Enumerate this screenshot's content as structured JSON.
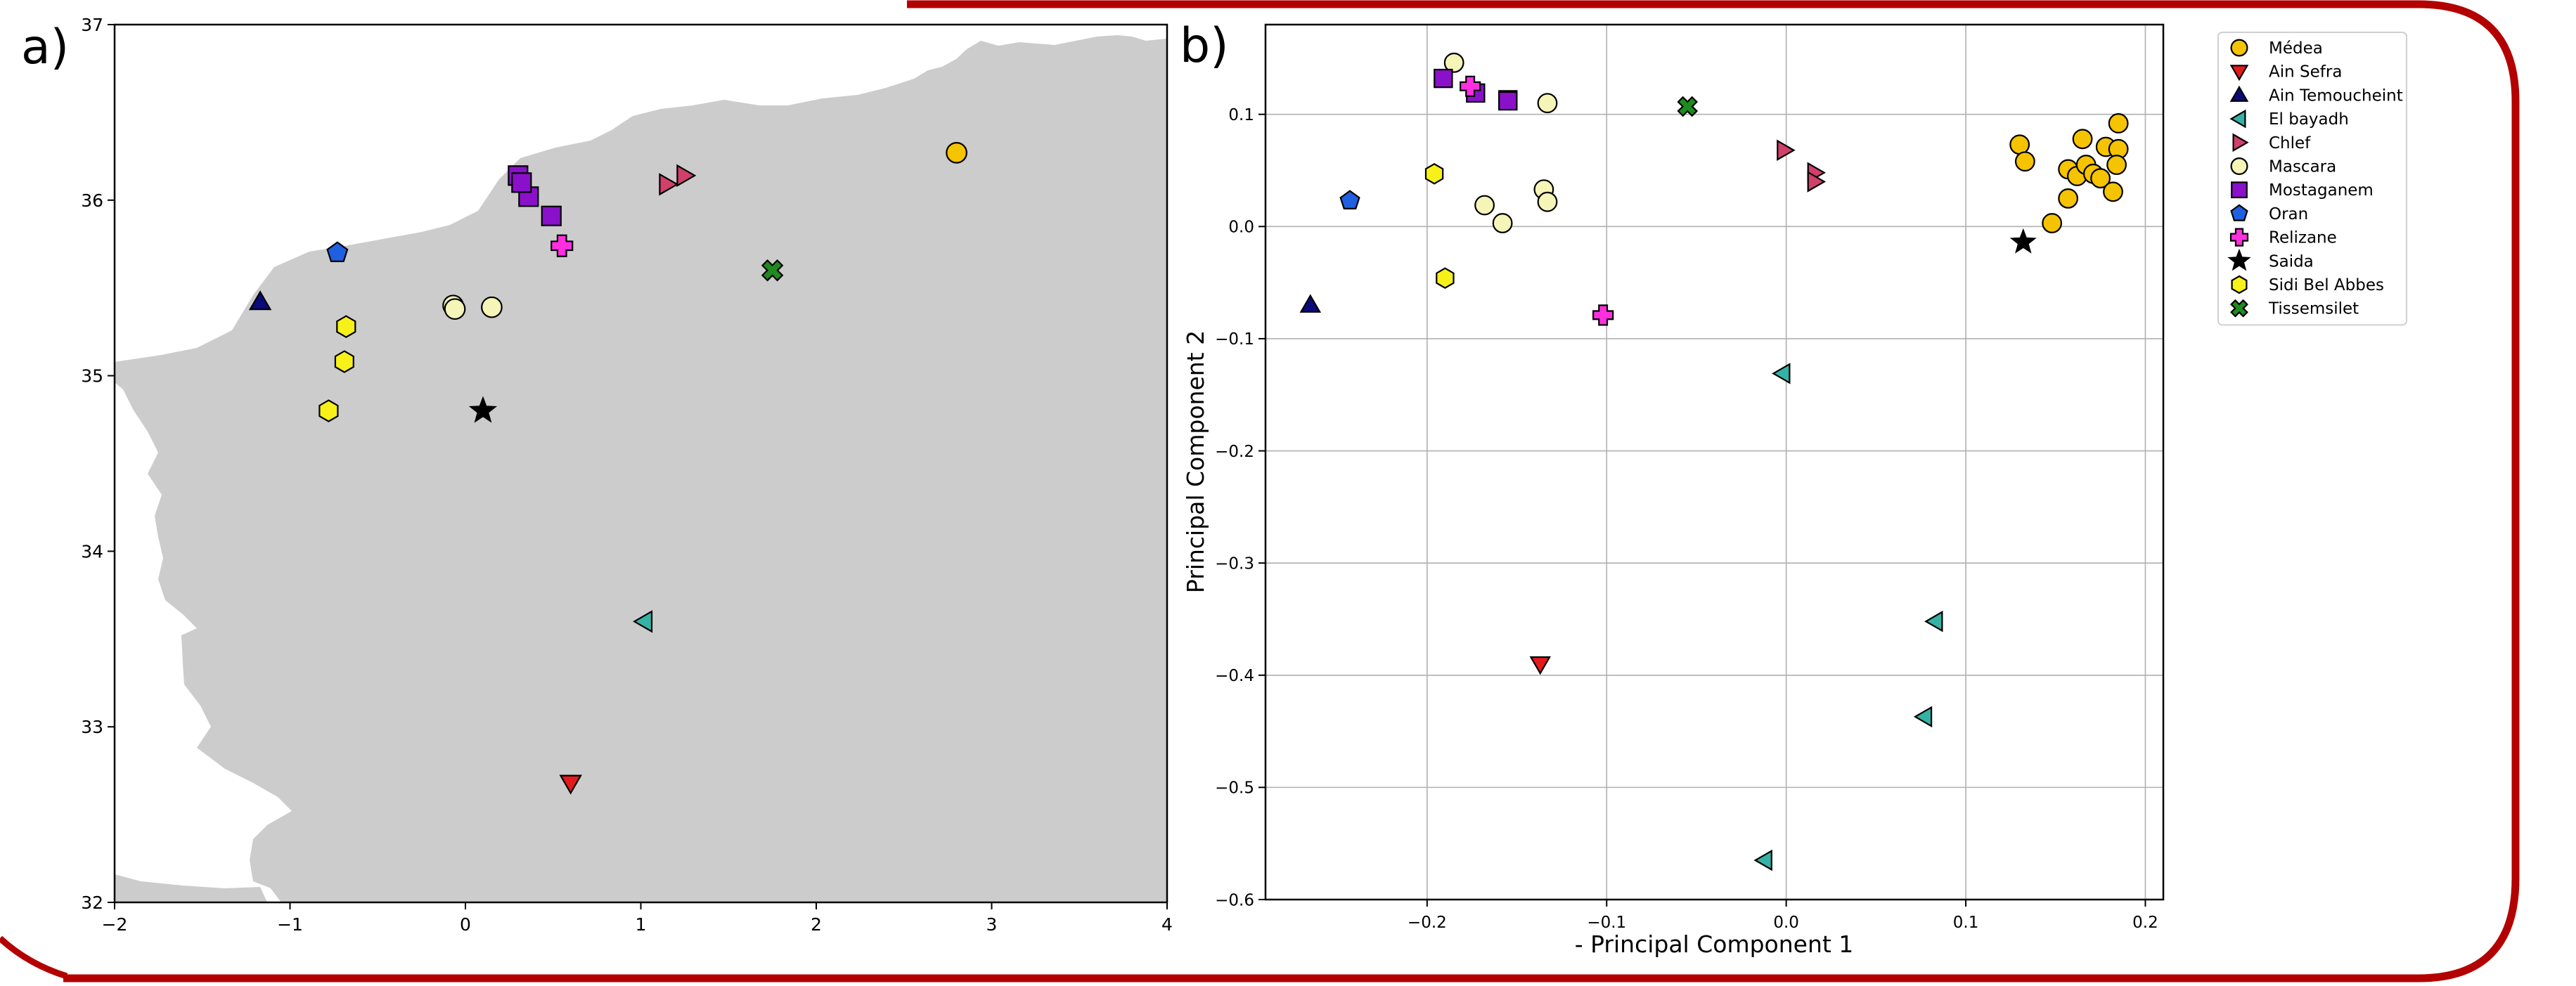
{
  "panels": {
    "a": {
      "label": "a)"
    },
    "b": {
      "label": "b)"
    }
  },
  "colors": {
    "frame": "#b30000",
    "land": "#cccccc",
    "grid": "#b0b0b0"
  },
  "chart_data": [
    {
      "type": "scatter",
      "panel": "a)",
      "title": "",
      "xlabel": "",
      "ylabel": "",
      "xlim": [
        -2,
        4
      ],
      "ylim": [
        32,
        37
      ],
      "xticks": [
        -2,
        -1,
        0,
        1,
        2,
        3,
        4
      ],
      "yticks": [
        32,
        33,
        34,
        35,
        36,
        37
      ],
      "xtick_labels": [
        "−2",
        "−1",
        "0",
        "1",
        "2",
        "3",
        "4"
      ],
      "ytick_labels": [
        "32",
        "33",
        "34",
        "35",
        "36",
        "37"
      ],
      "grid": false,
      "background": "shaded land map",
      "series": [
        {
          "name": "Médea",
          "marker": "circle",
          "color": "#f5c300",
          "points": [
            [
              2.8,
              36.27
            ]
          ]
        },
        {
          "name": "Ain Sefra",
          "marker": "triangle-down",
          "color": "#e31a1c",
          "points": [
            [
              0.6,
              32.68
            ]
          ]
        },
        {
          "name": "Ain Temoucheint",
          "marker": "triangle-up",
          "color": "#0a0a7a",
          "points": [
            [
              -1.17,
              35.42
            ]
          ]
        },
        {
          "name": "El bayadh",
          "marker": "triangle-left",
          "color": "#33b3a6",
          "points": [
            [
              1.02,
              33.6
            ]
          ]
        },
        {
          "name": "Chlef",
          "marker": "triangle-right",
          "color": "#d1406b",
          "points": [
            [
              1.15,
              36.09
            ],
            [
              1.25,
              36.14
            ]
          ]
        },
        {
          "name": "Mascara",
          "marker": "circle",
          "color": "#f5f5b8",
          "points": [
            [
              -0.07,
              35.4
            ],
            [
              -0.06,
              35.38
            ],
            [
              0.15,
              35.39
            ]
          ]
        },
        {
          "name": "Mostaganem",
          "marker": "square",
          "color": "#8a10c9",
          "points": [
            [
              0.3,
              36.14
            ],
            [
              0.36,
              36.02
            ],
            [
              0.49,
              35.91
            ],
            [
              0.32,
              36.1
            ]
          ]
        },
        {
          "name": "Oran",
          "marker": "pentagon",
          "color": "#1f5fe0",
          "points": [
            [
              -0.73,
              35.7
            ]
          ]
        },
        {
          "name": "Relizane",
          "marker": "plus",
          "color": "#ff2fe0",
          "points": [
            [
              0.55,
              35.74
            ]
          ]
        },
        {
          "name": "Saida",
          "marker": "star",
          "color": "#000000",
          "points": [
            [
              0.1,
              34.8
            ]
          ]
        },
        {
          "name": "Sidi Bel Abbes",
          "marker": "hexagon",
          "color": "#f7f019",
          "points": [
            [
              -0.68,
              35.28
            ],
            [
              -0.69,
              35.08
            ],
            [
              -0.78,
              34.8
            ]
          ]
        },
        {
          "name": "Tissemsilet",
          "marker": "x",
          "color": "#1f8a1f",
          "points": [
            [
              1.75,
              35.6
            ]
          ]
        }
      ]
    },
    {
      "type": "scatter",
      "panel": "b)",
      "title": "",
      "xlabel": "- Principal Component 1",
      "ylabel": "Principal Component 2",
      "xlim": [
        -0.29,
        0.21
      ],
      "ylim": [
        -0.6,
        0.18
      ],
      "xticks": [
        -0.2,
        -0.1,
        0.0,
        0.1,
        0.2
      ],
      "yticks": [
        -0.6,
        -0.5,
        -0.4,
        -0.3,
        -0.2,
        -0.1,
        0.0,
        0.1
      ],
      "xtick_labels": [
        "−0.2",
        "−0.1",
        "0.0",
        "0.1",
        "0.2"
      ],
      "ytick_labels": [
        "−0.6",
        "−0.5",
        "−0.4",
        "−0.3",
        "−0.2",
        "−0.1",
        "0.0",
        "0.1"
      ],
      "grid": true,
      "legend": "outside right, top",
      "series": [
        {
          "name": "Médea",
          "marker": "circle",
          "color": "#f5c300",
          "points": [
            [
              0.13,
              0.073
            ],
            [
              0.133,
              0.058
            ],
            [
              0.165,
              0.078
            ],
            [
              0.185,
              0.092
            ],
            [
              0.157,
              0.051
            ],
            [
              0.162,
              0.045
            ],
            [
              0.167,
              0.055
            ],
            [
              0.171,
              0.047
            ],
            [
              0.175,
              0.043
            ],
            [
              0.178,
              0.071
            ],
            [
              0.185,
              0.069
            ],
            [
              0.184,
              0.055
            ],
            [
              0.157,
              0.025
            ],
            [
              0.148,
              0.003
            ],
            [
              0.182,
              0.031
            ]
          ]
        },
        {
          "name": "Ain Sefra",
          "marker": "triangle-down",
          "color": "#e31a1c",
          "points": [
            [
              -0.137,
              -0.39
            ]
          ]
        },
        {
          "name": "Ain Temoucheint",
          "marker": "triangle-up",
          "color": "#0a0a7a",
          "points": [
            [
              -0.265,
              -0.07
            ]
          ]
        },
        {
          "name": "El bayadh",
          "marker": "triangle-left",
          "color": "#33b3a6",
          "points": [
            [
              -0.002,
              -0.131
            ],
            [
              0.083,
              -0.352
            ],
            [
              0.077,
              -0.437
            ],
            [
              -0.012,
              -0.565
            ]
          ]
        },
        {
          "name": "Chlef",
          "marker": "triangle-right",
          "color": "#d1406b",
          "points": [
            [
              -0.001,
              0.068
            ],
            [
              0.016,
              0.048
            ],
            [
              0.016,
              0.04
            ]
          ]
        },
        {
          "name": "Mascara",
          "marker": "circle",
          "color": "#f5f5b8",
          "points": [
            [
              -0.185,
              0.146
            ],
            [
              -0.133,
              0.11
            ],
            [
              -0.168,
              0.019
            ],
            [
              -0.135,
              0.033
            ],
            [
              -0.133,
              0.022
            ],
            [
              -0.158,
              0.003
            ]
          ]
        },
        {
          "name": "Mostaganem",
          "marker": "square",
          "color": "#8a10c9",
          "points": [
            [
              -0.191,
              0.132
            ],
            [
              -0.173,
              0.119
            ],
            [
              -0.155,
              0.113
            ],
            [
              -0.155,
              0.112
            ]
          ]
        },
        {
          "name": "Oran",
          "marker": "pentagon",
          "color": "#1f5fe0",
          "points": [
            [
              -0.243,
              0.023
            ]
          ]
        },
        {
          "name": "Relizane",
          "marker": "plus",
          "color": "#ff2fe0",
          "points": [
            [
              -0.176,
              0.125
            ],
            [
              -0.102,
              -0.079
            ]
          ]
        },
        {
          "name": "Saida",
          "marker": "star",
          "color": "#000000",
          "points": [
            [
              0.132,
              -0.014
            ]
          ]
        },
        {
          "name": "Sidi Bel Abbes",
          "marker": "hexagon",
          "color": "#f7f019",
          "points": [
            [
              -0.196,
              0.047
            ],
            [
              -0.19,
              -0.046
            ]
          ]
        },
        {
          "name": "Tissemsilet",
          "marker": "x",
          "color": "#1f8a1f",
          "points": [
            [
              -0.055,
              0.107
            ]
          ]
        }
      ]
    }
  ]
}
